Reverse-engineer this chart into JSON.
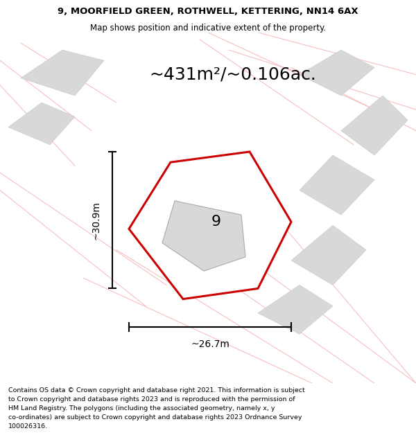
{
  "title_line1": "9, MOORFIELD GREEN, ROTHWELL, KETTERING, NN14 6AX",
  "title_line2": "Map shows position and indicative extent of the property.",
  "area_text": "~431m²/~0.106ac.",
  "dim_height": "~30.9m",
  "dim_width": "~26.7m",
  "property_number": "9",
  "map_background": "#f0eeec",
  "plot_outline_color": "#cc0000",
  "building_fill_color": "#d8d8d8",
  "building_outline_color": "#cccccc",
  "road_line_color": "#f5c0c0",
  "footer_lines": [
    "Contains OS data © Crown copyright and database right 2021. This information is subject",
    "to Crown copyright and database rights 2023 and is reproduced with the permission of",
    "HM Land Registry. The polygons (including the associated geometry, namely x, y",
    "co-ordinates) are subject to Crown copyright and database rights 2023 Ordnance Survey",
    "100026316."
  ]
}
